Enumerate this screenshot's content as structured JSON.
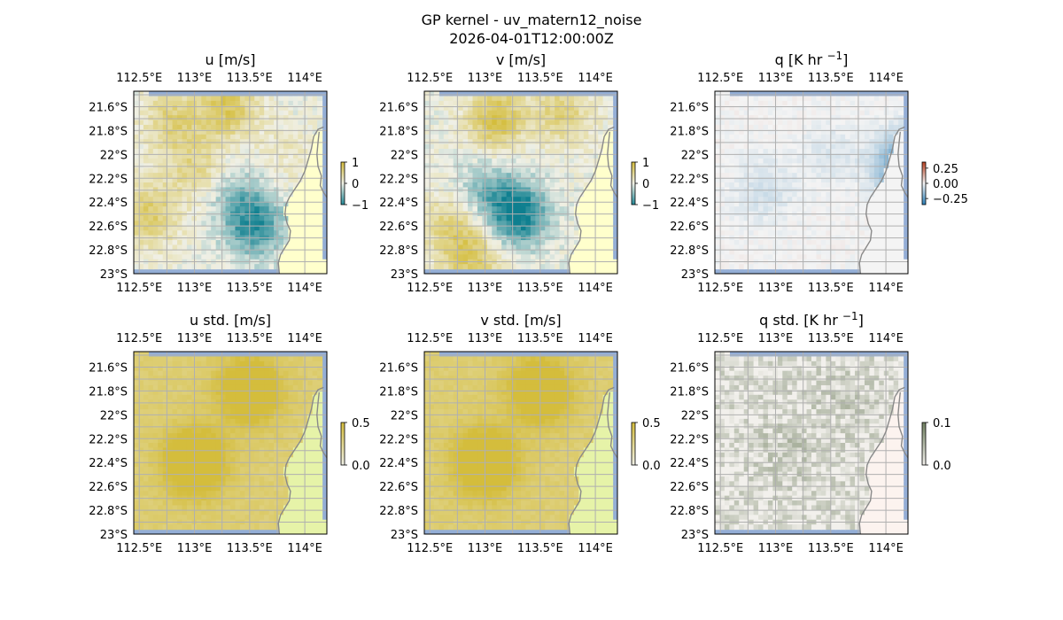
{
  "figure": {
    "title_line1": "GP kernel - uv_matern12_noise",
    "title_line2": "2026-04-01T12:00:00Z"
  },
  "map": {
    "lon_ticks": [
      "112.5°E",
      "113°E",
      "113.5°E",
      "114°E"
    ],
    "lon_values": [
      112.5,
      113.0,
      113.5,
      114.0
    ],
    "lat_ticks": [
      "21.6°S",
      "21.8°S",
      "22°S",
      "22.2°S",
      "22.4°S",
      "22.6°S",
      "22.8°S",
      "23°S"
    ],
    "lat_values": [
      -21.6,
      -21.8,
      -22.0,
      -22.2,
      -22.4,
      -22.6,
      -22.8,
      -23.0
    ],
    "lon_range": [
      112.45,
      114.2
    ],
    "lat_range": [
      -23.0,
      -21.47
    ],
    "coastline": [
      [
        114.17,
        -21.77
      ],
      [
        114.12,
        -21.79
      ],
      [
        114.08,
        -21.85
      ],
      [
        114.06,
        -21.95
      ],
      [
        114.03,
        -22.05
      ],
      [
        114.0,
        -22.14
      ],
      [
        113.96,
        -22.22
      ],
      [
        113.91,
        -22.29
      ],
      [
        113.86,
        -22.36
      ],
      [
        113.83,
        -22.42
      ],
      [
        113.82,
        -22.5
      ],
      [
        113.84,
        -22.58
      ],
      [
        113.87,
        -22.64
      ],
      [
        113.86,
        -22.72
      ],
      [
        113.82,
        -22.78
      ],
      [
        113.78,
        -22.84
      ],
      [
        113.76,
        -22.91
      ],
      [
        113.77,
        -23.0
      ]
    ],
    "inlet": [
      [
        114.13,
        -21.81
      ],
      [
        114.12,
        -21.9
      ],
      [
        114.11,
        -22.0
      ],
      [
        114.12,
        -22.1
      ],
      [
        114.15,
        -22.18
      ],
      [
        114.14,
        -22.26
      ],
      [
        114.17,
        -22.32
      ],
      [
        114.2,
        -22.36
      ]
    ]
  },
  "colors": {
    "ocean_low": "#0e7f8f",
    "ocean_mid": "#f0f0e6",
    "ocean_high": "#d4bd3c",
    "land": "#ffffcc",
    "land_std": "#e6f3a8",
    "sea_edge": "#94aed6",
    "q_negative": "#2b7fb8",
    "q_positive": "#b84020",
    "q_std_high": "#708060",
    "q_std_land": "#fcf3ef",
    "gridline": "#b0b0b0",
    "coast_line": "#8a8a8a"
  },
  "chart_data": [
    {
      "type": "heatmap",
      "title": "u [m/s]",
      "colorbar_ticks": [
        "1",
        "0",
        "−1"
      ],
      "colorbar_values": [
        1,
        0,
        -1
      ],
      "vlim": [
        -1,
        1
      ],
      "grid": true,
      "pattern": "mixed positive u over most of the ocean; negative patch near 113.5°E 22.6°S",
      "blobs": [
        {
          "lon": 112.8,
          "lat": -21.7,
          "value": 0.6
        },
        {
          "lon": 113.3,
          "lat": -21.6,
          "value": 0.8
        },
        {
          "lon": 112.6,
          "lat": -22.5,
          "value": 0.7
        },
        {
          "lon": 113.0,
          "lat": -22.1,
          "value": 0.5
        },
        {
          "lon": 113.55,
          "lat": -22.6,
          "value": -0.9
        },
        {
          "lon": 113.4,
          "lat": -22.35,
          "value": -0.4
        },
        {
          "lon": 113.8,
          "lat": -22.0,
          "value": 0.2
        }
      ]
    },
    {
      "type": "heatmap",
      "title": "v [m/s]",
      "colorbar_ticks": [
        "1",
        "0",
        "−1"
      ],
      "colorbar_values": [
        1,
        0,
        -1
      ],
      "vlim": [
        -1,
        1
      ],
      "grid": true,
      "pattern": "strong negative v centred near 113.3°E 22.5°S; positive band along 21.7°S",
      "blobs": [
        {
          "lon": 113.1,
          "lat": -21.7,
          "value": 0.9
        },
        {
          "lon": 113.7,
          "lat": -21.65,
          "value": 0.6
        },
        {
          "lon": 113.3,
          "lat": -22.5,
          "value": -1.2
        },
        {
          "lon": 113.0,
          "lat": -22.3,
          "value": -0.5
        },
        {
          "lon": 112.7,
          "lat": -22.6,
          "value": 0.6
        },
        {
          "lon": 112.9,
          "lat": -22.9,
          "value": 0.7
        }
      ]
    },
    {
      "type": "heatmap",
      "title": "q [K hr $^{-1}$]",
      "title_main": "q [K hr ",
      "title_exp": "−1",
      "title_end": "]",
      "colorbar_ticks": [
        "0.25",
        "0.00",
        "−0.25"
      ],
      "colorbar_values": [
        0.25,
        0.0,
        -0.25
      ],
      "vlim": [
        -0.35,
        0.35
      ],
      "grid": true,
      "pattern": "weak negative q (~ -0.05) over ocean, ~0 over land, strong negative column near 114.17°E 22.1°S",
      "blobs": [
        {
          "lon": 112.9,
          "lat": -22.3,
          "value": -0.06
        },
        {
          "lon": 113.5,
          "lat": -22.0,
          "value": -0.04
        },
        {
          "lon": 114.18,
          "lat": -22.1,
          "value": -0.3
        }
      ]
    },
    {
      "type": "heatmap",
      "title": "u std. [m/s]",
      "colorbar_ticks": [
        "0.5",
        "0.0"
      ],
      "colorbar_values": [
        0.5,
        0.0
      ],
      "vlim": [
        0,
        0.5
      ],
      "grid": true,
      "pattern": "near-uniform std ~0.4 over ocean, lower over land",
      "blobs": [
        {
          "lon": 113.0,
          "lat": -22.4,
          "value": 0.42
        },
        {
          "lon": 113.5,
          "lat": -21.8,
          "value": 0.38
        }
      ]
    },
    {
      "type": "heatmap",
      "title": "v std. [m/s]",
      "colorbar_ticks": [
        "0.5",
        "0.0"
      ],
      "colorbar_values": [
        0.5,
        0.0
      ],
      "vlim": [
        0,
        0.5
      ],
      "grid": true,
      "pattern": "near-uniform std ~0.4 over ocean, lower over land",
      "blobs": [
        {
          "lon": 113.0,
          "lat": -22.4,
          "value": 0.42
        },
        {
          "lon": 113.5,
          "lat": -21.8,
          "value": 0.38
        }
      ]
    },
    {
      "type": "heatmap",
      "title": "q std. [K hr $^{-1}$]",
      "title_main": "q std. [K hr ",
      "title_exp": "−1",
      "title_end": "]",
      "colorbar_ticks": [
        "0.1",
        "0.0"
      ],
      "colorbar_values": [
        0.1,
        0.0
      ],
      "vlim": [
        0,
        0.1
      ],
      "grid": true,
      "pattern": "faint std ~0.01-0.02 over ocean, near 0 over land",
      "blobs": [
        {
          "lon": 113.1,
          "lat": -22.3,
          "value": 0.02
        },
        {
          "lon": 113.6,
          "lat": -21.9,
          "value": 0.015
        }
      ]
    }
  ]
}
